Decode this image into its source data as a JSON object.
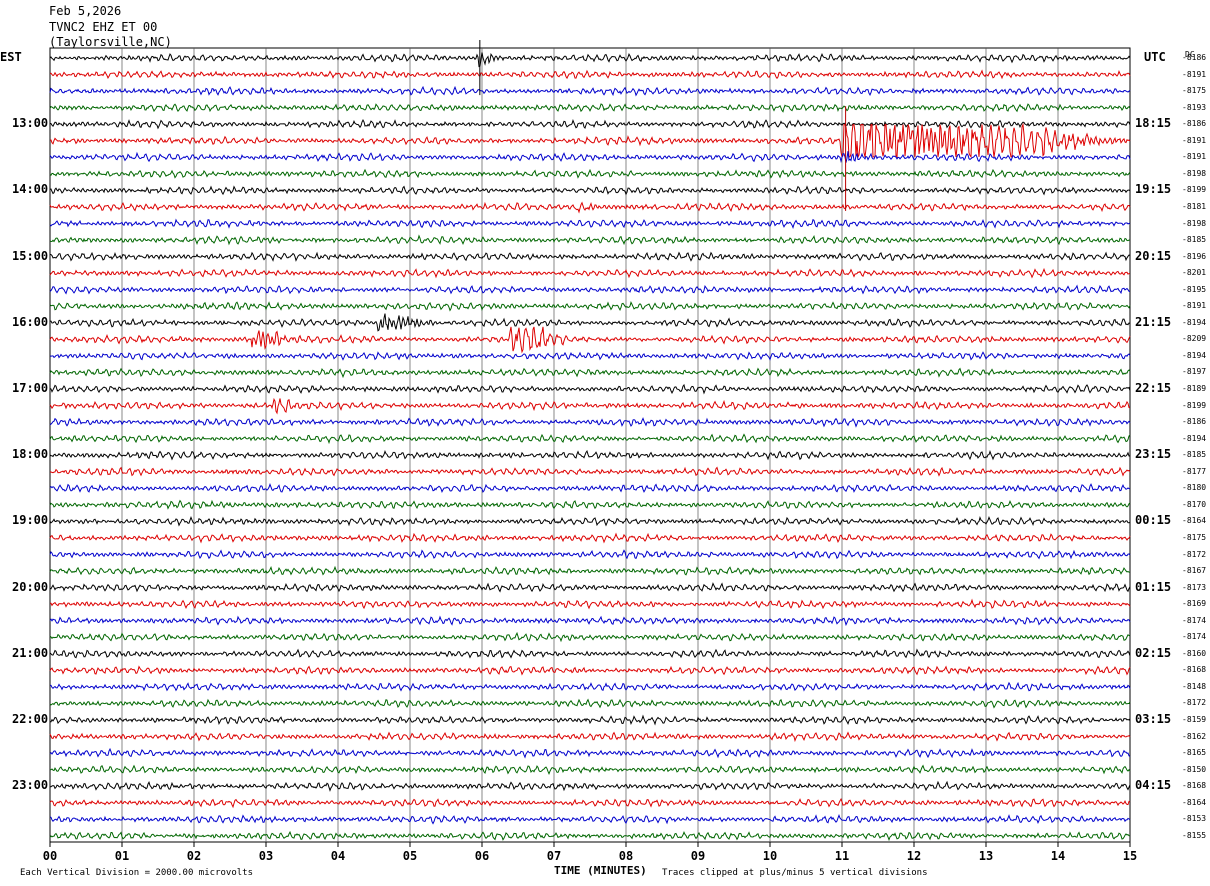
{
  "header": {
    "date": "Feb 5,2026",
    "channel": "TVNC2 EHZ ET 00",
    "location": "(Taylorsville,NC)"
  },
  "left_zone": "EST",
  "right_zone": "UTC",
  "dc_header": "DC",
  "footer": {
    "scale": "Each Vertical Division = 2000.00 microvolts",
    "xlabel": "TIME (MINUTES)",
    "clip": "Traces clipped at plus/minus 5 vertical divisions"
  },
  "colors": {
    "traces": [
      "#000000",
      "#dd0000",
      "#0000cc",
      "#006600"
    ],
    "grid": "#000000",
    "background": "#ffffff"
  },
  "chart_data": {
    "type": "line",
    "xlabel": "TIME (MINUTES)",
    "x_ticks": [
      "00",
      "01",
      "02",
      "03",
      "04",
      "05",
      "06",
      "07",
      "08",
      "09",
      "10",
      "11",
      "12",
      "13",
      "14",
      "15"
    ],
    "xlim": [
      0,
      15
    ],
    "rows_per_hour": 4,
    "est_labels": [
      "13:00",
      "14:00",
      "15:00",
      "16:00",
      "17:00",
      "18:00",
      "19:00",
      "20:00",
      "21:00",
      "22:00",
      "23:00"
    ],
    "utc_labels": [
      "18:15",
      "19:15",
      "20:15",
      "21:15",
      "22:15",
      "23:15",
      "00:15",
      "01:15",
      "02:15",
      "03:15",
      "04:15"
    ],
    "dc_offsets": [
      "-8186",
      "-8191",
      "-8175",
      "-8193",
      "-8186",
      "-8191",
      "-8191",
      "-8198",
      "-8199",
      "-8181",
      "-8198",
      "-8185",
      "-8196",
      "-8201",
      "-8195",
      "-8191",
      "-8194",
      "-8209",
      "-8194",
      "-8197",
      "-8189",
      "-8199",
      "-8186",
      "-8194",
      "-8185",
      "-8177",
      "-8180",
      "-8170",
      "-8164",
      "-8175",
      "-8172",
      "-8167",
      "-8173",
      "-8169",
      "-8174",
      "-8174",
      "-8160",
      "-8168",
      "-8148",
      "-8172",
      "-8159",
      "-8162",
      "-8165",
      "-8150",
      "-8168",
      "-8164",
      "-8153",
      "-8155"
    ],
    "events": [
      {
        "row": 0,
        "minute": 5.95,
        "amp": 1.0
      },
      {
        "row": 5,
        "minute": 11.0,
        "amp": 2.4,
        "dur": 4.0
      },
      {
        "row": 6,
        "minute": 11.0,
        "amp": 0.6,
        "dur": 0.5
      },
      {
        "row": 16,
        "minute": 4.55,
        "amp": 0.9,
        "dur": 0.8
      },
      {
        "row": 17,
        "minute": 2.8,
        "amp": 1.1,
        "dur": 0.5
      },
      {
        "row": 17,
        "minute": 6.4,
        "amp": 1.0,
        "dur": 0.9
      },
      {
        "row": 21,
        "minute": 3.1,
        "amp": 0.7,
        "dur": 0.3
      },
      {
        "row": 9,
        "minute": 7.3,
        "amp": 0.6,
        "dur": 0.3
      }
    ]
  }
}
